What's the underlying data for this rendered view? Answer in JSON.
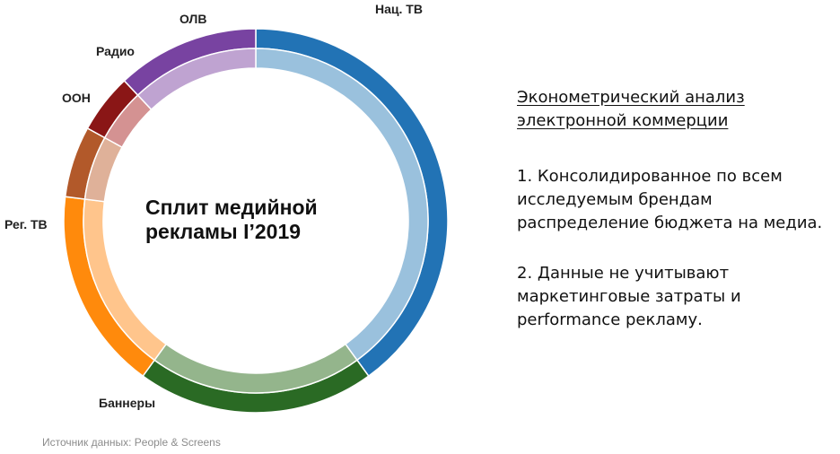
{
  "chart_data": {
    "type": "pie",
    "style": "donut",
    "title": "Сплит медийной рекламы I’2019",
    "segments": [
      {
        "label": "Нац. ТВ",
        "value": 40,
        "color_outer": "#2273b5",
        "color_inner": "#9ac1dd"
      },
      {
        "label": "Баннеры",
        "value": 20,
        "color_outer": "#2a6a24",
        "color_inner": "#94b58c"
      },
      {
        "label": "Рег. ТВ",
        "value": 17,
        "color_outer": "#ff8a0c",
        "color_inner": "#ffc58c"
      },
      {
        "label": "ООН",
        "value": 6,
        "color_outer": "#b2592a",
        "color_inner": "#dfb199"
      },
      {
        "label": "Радио",
        "value": 5,
        "color_outer": "#8a1616",
        "color_inner": "#d49292"
      },
      {
        "label": "ОЛВ",
        "value": 12,
        "color_outer": "#7843a1",
        "color_inner": "#bfa3d1"
      }
    ],
    "source": "Источник данных: People & Screens"
  },
  "side_panel": {
    "heading_line1": "Эконометрический анализ",
    "heading_line2": "электронной коммерции",
    "point1_line1": "1. Консолидированное по всем",
    "point1_line2": "исследуемым брендам",
    "point1_line3": "распределение бюджета на медиа.",
    "point2_line1": "2. Данные не учитывают",
    "point2_line2": "маркетинговые затраты и",
    "point2_line3": "performance рекламу."
  }
}
